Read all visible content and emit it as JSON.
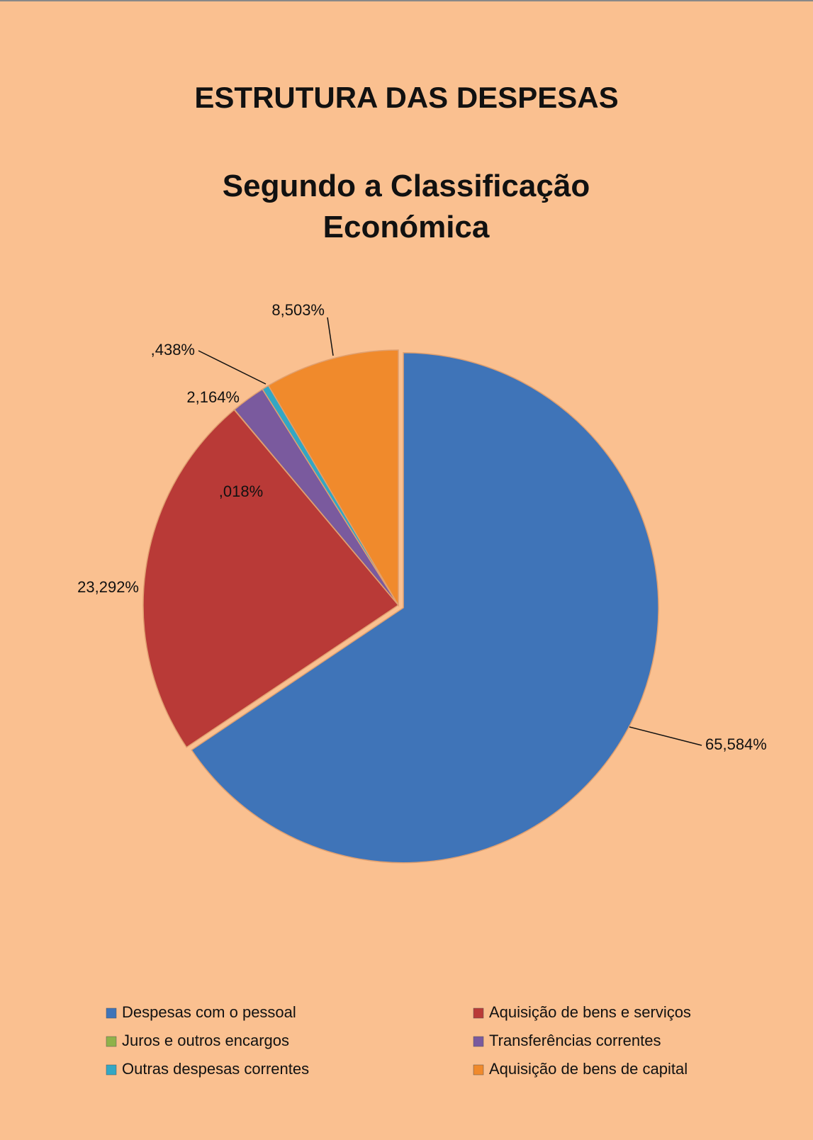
{
  "chart_data": {
    "type": "pie",
    "title": "ESTRUTURA DAS DESPESAS",
    "subtitle": "Segundo a Classificação Económica",
    "categories": [
      "Despesas com o pessoal",
      "Aquisição de bens e serviços",
      "Juros e outros encargos",
      "Transferências correntes",
      "Outras despesas correntes",
      "Aquisição de bens de capital"
    ],
    "values": [
      65.584,
      23.292,
      0.018,
      2.164,
      0.438,
      8.503
    ],
    "value_labels": [
      "65,584%",
      "23,292%",
      ",018%",
      "2,164%",
      ",438%",
      "8,503%"
    ],
    "colors": [
      "#3f74b8",
      "#b93a37",
      "#8fb24a",
      "#7a5a9e",
      "#33a7c4",
      "#f08a2c"
    ],
    "legend": "bottom"
  }
}
